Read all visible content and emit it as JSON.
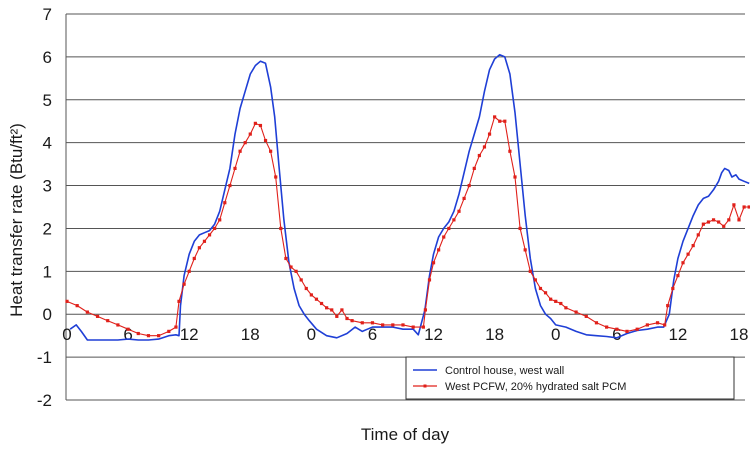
{
  "chart_data": {
    "type": "line",
    "title": "",
    "xlabel": "Time of day",
    "ylabel": "Heat transfer rate (Btu/ft²)",
    "ylim": [
      -2,
      7
    ],
    "xlim": [
      0,
      66
    ],
    "grid": true,
    "legend_position": "bottom-right",
    "yticks": [
      "7",
      "6",
      "5",
      "4",
      "3",
      "2",
      "1",
      "0",
      "-1",
      "-2"
    ],
    "xticks": [
      {
        "x": 0,
        "label": "0"
      },
      {
        "x": 6,
        "label": "6"
      },
      {
        "x": 12,
        "label": "12"
      },
      {
        "x": 18,
        "label": "18"
      },
      {
        "x": 24,
        "label": "0"
      },
      {
        "x": 30,
        "label": "6"
      },
      {
        "x": 36,
        "label": "12"
      },
      {
        "x": 42,
        "label": "18"
      },
      {
        "x": 48,
        "label": "0"
      },
      {
        "x": 54,
        "label": "6"
      },
      {
        "x": 60,
        "label": "12"
      },
      {
        "x": 66,
        "label": "18"
      }
    ],
    "series": [
      {
        "name": "Control house, west wall",
        "color": "#1f3fd6",
        "marker": "none",
        "points": [
          [
            0.3,
            -0.35
          ],
          [
            0.9,
            -0.25
          ],
          [
            1.4,
            -0.4
          ],
          [
            2,
            -0.6
          ],
          [
            3,
            -0.6
          ],
          [
            4,
            -0.6
          ],
          [
            5,
            -0.6
          ],
          [
            6,
            -0.58
          ],
          [
            7,
            -0.6
          ],
          [
            8,
            -0.6
          ],
          [
            9,
            -0.58
          ],
          [
            10,
            -0.5
          ],
          [
            10.7,
            -0.48
          ],
          [
            11,
            -0.5
          ],
          [
            11.15,
            0.2
          ],
          [
            11.5,
            0.9
          ],
          [
            12,
            1.4
          ],
          [
            12.5,
            1.7
          ],
          [
            13,
            1.85
          ],
          [
            13.5,
            1.9
          ],
          [
            14,
            1.95
          ],
          [
            14.5,
            2.1
          ],
          [
            15,
            2.4
          ],
          [
            15.5,
            2.9
          ],
          [
            16,
            3.4
          ],
          [
            16.5,
            4.2
          ],
          [
            17,
            4.8
          ],
          [
            17.5,
            5.2
          ],
          [
            18,
            5.6
          ],
          [
            18.5,
            5.8
          ],
          [
            19,
            5.9
          ],
          [
            19.5,
            5.85
          ],
          [
            20,
            5.3
          ],
          [
            20.4,
            4.6
          ],
          [
            20.8,
            3.5
          ],
          [
            21.3,
            2.2
          ],
          [
            21.8,
            1.2
          ],
          [
            22.3,
            0.6
          ],
          [
            22.8,
            0.2
          ],
          [
            23.3,
            0.0
          ],
          [
            23.8,
            -0.15
          ],
          [
            24.5,
            -0.35
          ],
          [
            25.5,
            -0.5
          ],
          [
            26.5,
            -0.55
          ],
          [
            27.5,
            -0.45
          ],
          [
            28.3,
            -0.3
          ],
          [
            29,
            -0.4
          ],
          [
            29.5,
            -0.35
          ],
          [
            30,
            -0.3
          ],
          [
            31,
            -0.3
          ],
          [
            32,
            -0.3
          ],
          [
            33,
            -0.35
          ],
          [
            34,
            -0.35
          ],
          [
            34.5,
            -0.48
          ],
          [
            35.15,
            0.1
          ],
          [
            35.6,
            0.9
          ],
          [
            36,
            1.4
          ],
          [
            36.5,
            1.8
          ],
          [
            37,
            2.0
          ],
          [
            37.5,
            2.15
          ],
          [
            38,
            2.4
          ],
          [
            38.5,
            2.8
          ],
          [
            39,
            3.3
          ],
          [
            39.5,
            3.8
          ],
          [
            40,
            4.2
          ],
          [
            40.5,
            4.6
          ],
          [
            41,
            5.2
          ],
          [
            41.5,
            5.7
          ],
          [
            42,
            5.95
          ],
          [
            42.5,
            6.05
          ],
          [
            43,
            6.0
          ],
          [
            43.5,
            5.6
          ],
          [
            44,
            4.7
          ],
          [
            44.5,
            3.5
          ],
          [
            45,
            2.3
          ],
          [
            45.5,
            1.3
          ],
          [
            46,
            0.6
          ],
          [
            46.5,
            0.2
          ],
          [
            47,
            0.0
          ],
          [
            47.5,
            -0.1
          ],
          [
            48,
            -0.25
          ],
          [
            49,
            -0.3
          ],
          [
            50,
            -0.4
          ],
          [
            51,
            -0.48
          ],
          [
            52,
            -0.5
          ],
          [
            53,
            -0.52
          ],
          [
            54,
            -0.55
          ],
          [
            55,
            -0.45
          ],
          [
            56,
            -0.38
          ],
          [
            57,
            -0.35
          ],
          [
            58,
            -0.3
          ],
          [
            58.6,
            -0.3
          ],
          [
            59.15,
            0.0
          ],
          [
            59.6,
            0.8
          ],
          [
            60,
            1.3
          ],
          [
            60.5,
            1.7
          ],
          [
            61,
            2.0
          ],
          [
            61.5,
            2.3
          ],
          [
            62,
            2.55
          ],
          [
            62.5,
            2.7
          ],
          [
            63,
            2.75
          ],
          [
            63.5,
            2.9
          ],
          [
            64,
            3.1
          ],
          [
            64.3,
            3.3
          ],
          [
            64.6,
            3.4
          ],
          [
            65,
            3.35
          ],
          [
            65.3,
            3.2
          ],
          [
            65.7,
            3.25
          ],
          [
            66,
            3.15
          ],
          [
            66.5,
            3.1
          ],
          [
            67,
            3.05
          ]
        ]
      },
      {
        "name": "West PCFW, 20% hydrated salt PCM",
        "color": "#e0201a",
        "marker": "square",
        "points": [
          [
            0,
            0.3
          ],
          [
            1,
            0.2
          ],
          [
            2,
            0.05
          ],
          [
            3,
            -0.05
          ],
          [
            4,
            -0.15
          ],
          [
            5,
            -0.25
          ],
          [
            6,
            -0.35
          ],
          [
            7,
            -0.45
          ],
          [
            8,
            -0.5
          ],
          [
            9,
            -0.5
          ],
          [
            10,
            -0.4
          ],
          [
            10.7,
            -0.3
          ],
          [
            11,
            0.3
          ],
          [
            11.5,
            0.7
          ],
          [
            12,
            1.0
          ],
          [
            12.5,
            1.3
          ],
          [
            13,
            1.55
          ],
          [
            13.5,
            1.7
          ],
          [
            14,
            1.85
          ],
          [
            14.5,
            2.0
          ],
          [
            15,
            2.2
          ],
          [
            15.5,
            2.6
          ],
          [
            16,
            3.0
          ],
          [
            16.5,
            3.4
          ],
          [
            17,
            3.8
          ],
          [
            17.5,
            4.0
          ],
          [
            18,
            4.2
          ],
          [
            18.5,
            4.45
          ],
          [
            19,
            4.4
          ],
          [
            19.5,
            4.05
          ],
          [
            20,
            3.8
          ],
          [
            20.5,
            3.2
          ],
          [
            21,
            2.0
          ],
          [
            21.5,
            1.3
          ],
          [
            22,
            1.1
          ],
          [
            22.5,
            1.0
          ],
          [
            23,
            0.8
          ],
          [
            23.5,
            0.6
          ],
          [
            24,
            0.45
          ],
          [
            24.5,
            0.35
          ],
          [
            25,
            0.25
          ],
          [
            25.5,
            0.15
          ],
          [
            26,
            0.1
          ],
          [
            26.5,
            -0.05
          ],
          [
            27,
            0.1
          ],
          [
            27.5,
            -0.1
          ],
          [
            28,
            -0.15
          ],
          [
            29,
            -0.2
          ],
          [
            30,
            -0.2
          ],
          [
            31,
            -0.25
          ],
          [
            32,
            -0.25
          ],
          [
            33,
            -0.25
          ],
          [
            34,
            -0.3
          ],
          [
            35,
            -0.3
          ],
          [
            35.2,
            0.1
          ],
          [
            35.6,
            0.8
          ],
          [
            36,
            1.2
          ],
          [
            36.5,
            1.5
          ],
          [
            37,
            1.8
          ],
          [
            37.5,
            2.0
          ],
          [
            38,
            2.2
          ],
          [
            38.5,
            2.4
          ],
          [
            39,
            2.7
          ],
          [
            39.5,
            3.0
          ],
          [
            40,
            3.4
          ],
          [
            40.5,
            3.7
          ],
          [
            41,
            3.9
          ],
          [
            41.5,
            4.2
          ],
          [
            42,
            4.6
          ],
          [
            42.5,
            4.5
          ],
          [
            43,
            4.5
          ],
          [
            43.5,
            3.8
          ],
          [
            44,
            3.2
          ],
          [
            44.5,
            2.0
          ],
          [
            45,
            1.5
          ],
          [
            45.5,
            1.0
          ],
          [
            46,
            0.8
          ],
          [
            46.5,
            0.6
          ],
          [
            47,
            0.5
          ],
          [
            47.5,
            0.35
          ],
          [
            48,
            0.3
          ],
          [
            48.5,
            0.25
          ],
          [
            49,
            0.15
          ],
          [
            50,
            0.05
          ],
          [
            51,
            -0.05
          ],
          [
            52,
            -0.2
          ],
          [
            53,
            -0.3
          ],
          [
            54,
            -0.35
          ],
          [
            55,
            -0.4
          ],
          [
            56,
            -0.35
          ],
          [
            57,
            -0.25
          ],
          [
            58,
            -0.2
          ],
          [
            58.7,
            -0.25
          ],
          [
            59,
            0.2
          ],
          [
            59.5,
            0.6
          ],
          [
            60,
            0.9
          ],
          [
            60.5,
            1.2
          ],
          [
            61,
            1.4
          ],
          [
            61.5,
            1.6
          ],
          [
            62,
            1.85
          ],
          [
            62.5,
            2.1
          ],
          [
            63,
            2.15
          ],
          [
            63.5,
            2.2
          ],
          [
            64,
            2.15
          ],
          [
            64.5,
            2.05
          ],
          [
            65,
            2.2
          ],
          [
            65.5,
            2.55
          ],
          [
            66,
            2.2
          ],
          [
            66.5,
            2.5
          ],
          [
            67,
            2.5
          ]
        ]
      }
    ]
  }
}
